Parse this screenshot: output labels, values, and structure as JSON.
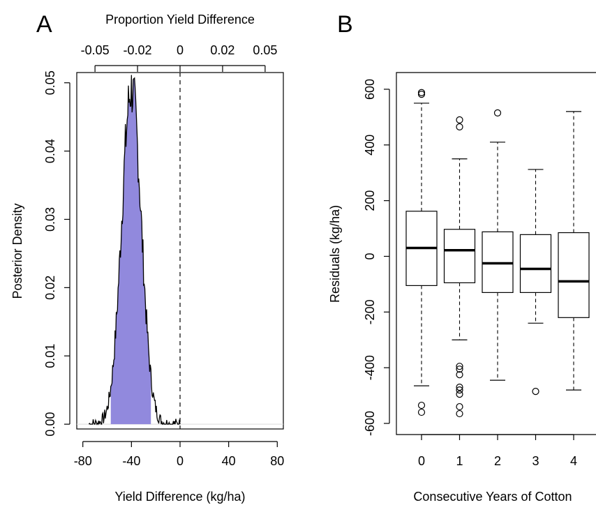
{
  "chart_data": [
    {
      "type": "area",
      "panel": "A",
      "title": "",
      "xlabel": "Yield Difference (kg/ha)",
      "ylabel": "Posterior Density",
      "top_axis_label": "Proportion Yield Difference",
      "xlim": [
        -85,
        85
      ],
      "ylim": [
        -0.0007,
        0.0515
      ],
      "x_ticks": [
        -80,
        -40,
        0,
        40,
        80
      ],
      "x_tick_labels": [
        "-80",
        "-40",
        "0",
        "40",
        "80"
      ],
      "y_ticks": [
        0,
        0.01,
        0.02,
        0.03,
        0.04,
        0.05
      ],
      "y_tick_labels": [
        "0.00",
        "0.01",
        "0.02",
        "0.03",
        "0.04",
        "0.05"
      ],
      "top_ticks": [
        -0.05,
        -0.02,
        0,
        0.02,
        0.05
      ],
      "top_tick_labels": [
        "-0.05",
        "-0.02",
        "0",
        "0.02",
        "0.05"
      ],
      "top_tick_positions_kgha": [
        -70,
        -35,
        0,
        35,
        70
      ],
      "density": {
        "mean": -40,
        "sd": 8.1,
        "peak": 0.049,
        "x_range": [
          -75,
          0
        ]
      },
      "credible_interval": [
        -57,
        -24
      ],
      "reference_line_x": 0,
      "fill_color": "#9189dd",
      "line_color": "#000000"
    },
    {
      "type": "box",
      "panel": "B",
      "title": "",
      "xlabel": "Consecutive Years of Cotton",
      "ylabel": "Residuals (kg/ha)",
      "ylim": [
        -640,
        660
      ],
      "y_ticks": [
        -600,
        -400,
        -200,
        0,
        200,
        400,
        600
      ],
      "y_tick_labels": [
        "-600",
        "-400",
        "-200",
        "0",
        "200",
        "400",
        "600"
      ],
      "categories": [
        "0",
        "1",
        "2",
        "3",
        "4"
      ],
      "boxes": [
        {
          "whisker_low": -465,
          "q1": -105,
          "median": 30,
          "q3": 162,
          "whisker_high": 550,
          "outliers": [
            -535,
            -560,
            582,
            588
          ]
        },
        {
          "whisker_low": -300,
          "q1": -95,
          "median": 22,
          "q3": 97,
          "whisker_high": 350,
          "outliers": [
            -395,
            -405,
            -425,
            -470,
            -480,
            -495,
            -540,
            -565,
            465,
            490
          ]
        },
        {
          "whisker_low": -445,
          "q1": -130,
          "median": -25,
          "q3": 88,
          "whisker_high": 410,
          "outliers": [
            515
          ]
        },
        {
          "whisker_low": -240,
          "q1": -130,
          "median": -45,
          "q3": 78,
          "whisker_high": 312,
          "outliers": [
            -485
          ]
        },
        {
          "whisker_low": -480,
          "q1": -220,
          "median": -90,
          "q3": 85,
          "whisker_high": 520,
          "outliers": []
        }
      ]
    }
  ],
  "panels": {
    "a_label": "A",
    "b_label": "B"
  }
}
